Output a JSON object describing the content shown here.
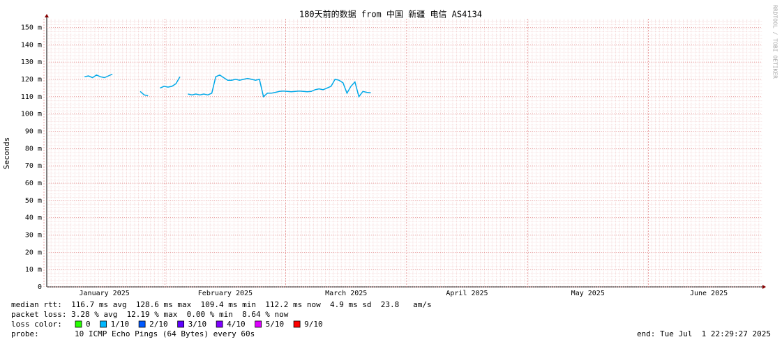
{
  "chart_data": {
    "type": "line",
    "title": "180天前的数据 from 中国 新疆 电信 AS4134",
    "y_label": "Seconds",
    "watermark": "RRDTOOL / TOBI OETIKER",
    "month_labels": [
      "January 2025",
      "February 2025",
      "March 2025",
      "April 2025",
      "May 2025",
      "June 2025"
    ],
    "color": "#00a8e8",
    "grid": true,
    "ylim": [
      0,
      0.155
    ],
    "yticks": [
      0,
      {
        "value": 0.01,
        "label": "10 m"
      },
      {
        "value": 0.02,
        "label": "20 m"
      },
      {
        "value": 0.03,
        "label": "30 m"
      },
      {
        "value": 0.04,
        "label": "40 m"
      },
      {
        "value": 0.05,
        "label": "50 m"
      },
      {
        "value": 0.06,
        "label": "60 m"
      },
      {
        "value": 0.07,
        "label": "70 m"
      },
      {
        "value": 0.08,
        "label": "80 m"
      },
      {
        "value": 0.09,
        "label": "90 m"
      },
      {
        "value": 0.1,
        "label": "100 m"
      },
      {
        "value": 0.11,
        "label": "110 m"
      },
      {
        "value": 0.12,
        "label": "120 m"
      },
      {
        "value": 0.13,
        "label": "130 m"
      },
      {
        "value": 0.14,
        "label": "140 m"
      },
      {
        "value": 0.15,
        "label": "150 m"
      }
    ],
    "values": [
      null,
      null,
      null,
      null,
      null,
      null,
      null,
      null,
      null,
      0.1215,
      0.122,
      0.121,
      0.1225,
      0.1215,
      0.121,
      0.122,
      0.123,
      null,
      null,
      null,
      null,
      null,
      null,
      0.113,
      0.111,
      0.1105,
      null,
      null,
      0.115,
      0.116,
      0.1155,
      0.116,
      0.1175,
      0.1215,
      null,
      0.1115,
      0.111,
      0.1115,
      0.111,
      0.1115,
      0.111,
      0.112,
      0.1215,
      0.1225,
      0.121,
      0.1195,
      0.1195,
      0.12,
      0.1195,
      0.12,
      0.1205,
      0.12,
      0.1195,
      0.12,
      0.11,
      0.112,
      0.112,
      0.1125,
      0.113,
      0.1132,
      0.113,
      0.1128,
      0.113,
      0.1132,
      0.113,
      0.1128,
      0.113,
      0.114,
      0.1145,
      0.114,
      0.115,
      0.116,
      0.12,
      0.1195,
      0.118,
      0.112,
      0.116,
      0.1185,
      0.11,
      0.113,
      0.1125,
      0.1122,
      null,
      null,
      null,
      null,
      null,
      null,
      null,
      null,
      null,
      null,
      null,
      null,
      null,
      null,
      null,
      null,
      null,
      null,
      null,
      null,
      null,
      null,
      null,
      null,
      null,
      null,
      null,
      null,
      null,
      null,
      null,
      null,
      null,
      null,
      null,
      null,
      null,
      null,
      null,
      null,
      null,
      null,
      null,
      null,
      null,
      null,
      null,
      null,
      null,
      null,
      null,
      null,
      null,
      null,
      null,
      null,
      null,
      null,
      null,
      null,
      null,
      null,
      null,
      null,
      null,
      null,
      null,
      null,
      null,
      null,
      null,
      null,
      null,
      null,
      null,
      null,
      null,
      null,
      null,
      null,
      null,
      null,
      null,
      null,
      null,
      null,
      null,
      null,
      null,
      null,
      null,
      null,
      null,
      null,
      null,
      null,
      null,
      null
    ],
    "stats": [
      "median rtt:  116.7 ms avg  128.6 ms max  109.4 ms min  112.2 ms now  4.9 ms sd  23.8   am/s",
      "packet loss: 3.28 % avg  12.19 % max  0.00 % min  8.64 % now"
    ],
    "loss_label": "loss color:",
    "loss_colors": [
      {
        "label": "0",
        "color": "#26ff00"
      },
      {
        "label": "1/10",
        "color": "#00b8ff"
      },
      {
        "label": "2/10",
        "color": "#0059ff"
      },
      {
        "label": "3/10",
        "color": "#5e00ff"
      },
      {
        "label": "4/10",
        "color": "#7e00ff"
      },
      {
        "label": "5/10",
        "color": "#dd00ff"
      },
      {
        "label": "9/10",
        "color": "#ff0000"
      }
    ],
    "probe_label": "probe:",
    "probe": "10 ICMP Echo Pings (64 Bytes) every 60s",
    "end": "end: Tue Jul  1 22:29:27 2025"
  }
}
